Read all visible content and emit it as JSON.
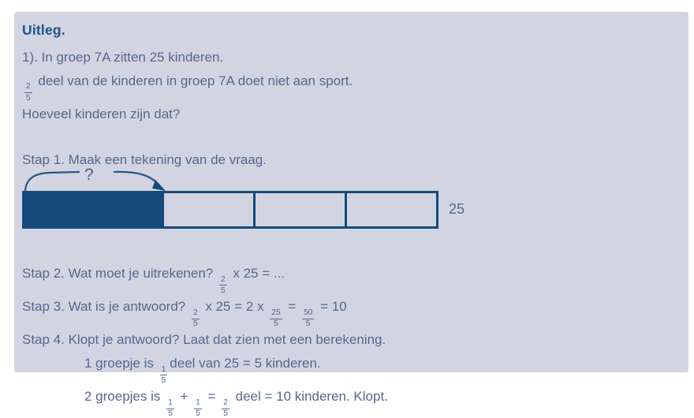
{
  "card": {
    "title": "Uitleg.",
    "lines": {
      "problem1": [
        {
          "t": "1). In groep 7A zitten 25 kinderen."
        }
      ],
      "problem2": [
        {
          "f": [
            "2",
            "5"
          ]
        },
        {
          "t": " deel van de kinderen in groep 7A doet niet aan sport."
        }
      ],
      "problem3": [
        {
          "t": "Hoeveel kinderen zijn dat?"
        }
      ],
      "step1": [
        {
          "t": "Stap 1. Maak een tekening van de vraag."
        }
      ],
      "step2": [
        {
          "t": "Stap 2. Wat moet je uitrekenen? "
        },
        {
          "f": [
            "2",
            "5"
          ]
        },
        {
          "t": " x 25 = ..."
        }
      ],
      "step3": [
        {
          "t": "Stap 3. Wat is je antwoord? "
        },
        {
          "f": [
            "2",
            "5"
          ]
        },
        {
          "t": " x 25 = 2 x "
        },
        {
          "f": [
            "25",
            "5"
          ]
        },
        {
          "t": " = "
        },
        {
          "f": [
            "50",
            "5"
          ]
        },
        {
          "t": " = 10"
        }
      ],
      "step4": [
        {
          "t": "Stap 4. Klopt je antwoord? Laat dat zien met een berekening."
        }
      ],
      "check1": [
        {
          "t": "1 groepje is "
        },
        {
          "f": [
            "1",
            "5"
          ]
        },
        {
          "t": "deel van 25 = 5 kinderen."
        }
      ],
      "check2": [
        {
          "t": "2 groepjes is "
        },
        {
          "f": [
            "1",
            "5"
          ]
        },
        {
          "t": " + "
        },
        {
          "f": [
            "1",
            "5"
          ]
        },
        {
          "t": " = "
        },
        {
          "f": [
            "2",
            "5"
          ]
        },
        {
          "t": " deel = 10 kinderen. Klopt."
        }
      ]
    },
    "diagram": {
      "question_mark": "?",
      "total_label": "25",
      "filled_parts": 2,
      "total_parts": 5,
      "empty_cell_count": 3
    }
  },
  "colors": {
    "card_background": "#d2d5e1",
    "title_text": "#1e5389",
    "body_text": "#55678f",
    "bar_fill": "#14497b"
  }
}
